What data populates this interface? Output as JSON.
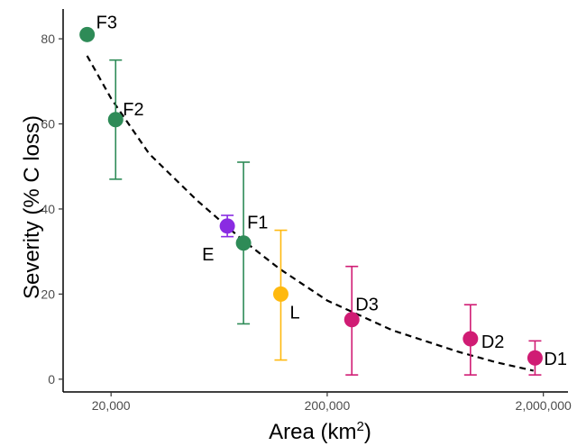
{
  "chart_data": {
    "type": "scatter",
    "title": "",
    "xlabel": "Area (km",
    "xlabel_superscript": "2",
    "xlabel_close": ")",
    "ylabel": "Severity (% C loss)",
    "x_scale": "log",
    "xlim": [
      12000,
      2600000
    ],
    "ylim": [
      -3,
      87
    ],
    "x_ticks": [
      20000,
      200000,
      2000000
    ],
    "x_tick_labels": [
      "20,000",
      "200,000",
      "2,000,000"
    ],
    "y_ticks": [
      0,
      20,
      40,
      60,
      80
    ],
    "y_tick_labels": [
      "0",
      "20",
      "40",
      "60",
      "80"
    ],
    "grid": false,
    "legend": "none",
    "points": [
      {
        "label": "F3",
        "x": 15500,
        "y": 81,
        "err_low": null,
        "err_high": null,
        "color": "#2e8b57"
      },
      {
        "label": "F2",
        "x": 21000,
        "y": 61,
        "err_low": 47,
        "err_high": 75,
        "color": "#2e8b57"
      },
      {
        "label": "E",
        "x": 69000,
        "y": 36,
        "err_low": 33.5,
        "err_high": 38.5,
        "color": "#8a2be2"
      },
      {
        "label": "F1",
        "x": 82000,
        "y": 32,
        "err_low": 13,
        "err_high": 51,
        "color": "#2e8b57"
      },
      {
        "label": "L",
        "x": 122000,
        "y": 20,
        "err_low": 4.5,
        "err_high": 35,
        "color": "#ffb90f"
      },
      {
        "label": "D3",
        "x": 260000,
        "y": 14,
        "err_low": 1,
        "err_high": 26.5,
        "color": "#d01c74"
      },
      {
        "label": "D2",
        "x": 920000,
        "y": 9.5,
        "err_low": 1,
        "err_high": 17.5,
        "color": "#d01c74"
      },
      {
        "label": "D1",
        "x": 1830000,
        "y": 5,
        "err_low": 1,
        "err_high": 9,
        "color": "#d01c74"
      }
    ],
    "trend_line": {
      "style": "dashed",
      "color": "#000000",
      "x": [
        15500,
        20000,
        30000,
        50000,
        80000,
        120000,
        200000,
        400000,
        800000,
        1200000,
        1800000
      ],
      "y": [
        76,
        66,
        53,
        42,
        33,
        26,
        18.5,
        11.5,
        6.5,
        4,
        2
      ]
    }
  }
}
